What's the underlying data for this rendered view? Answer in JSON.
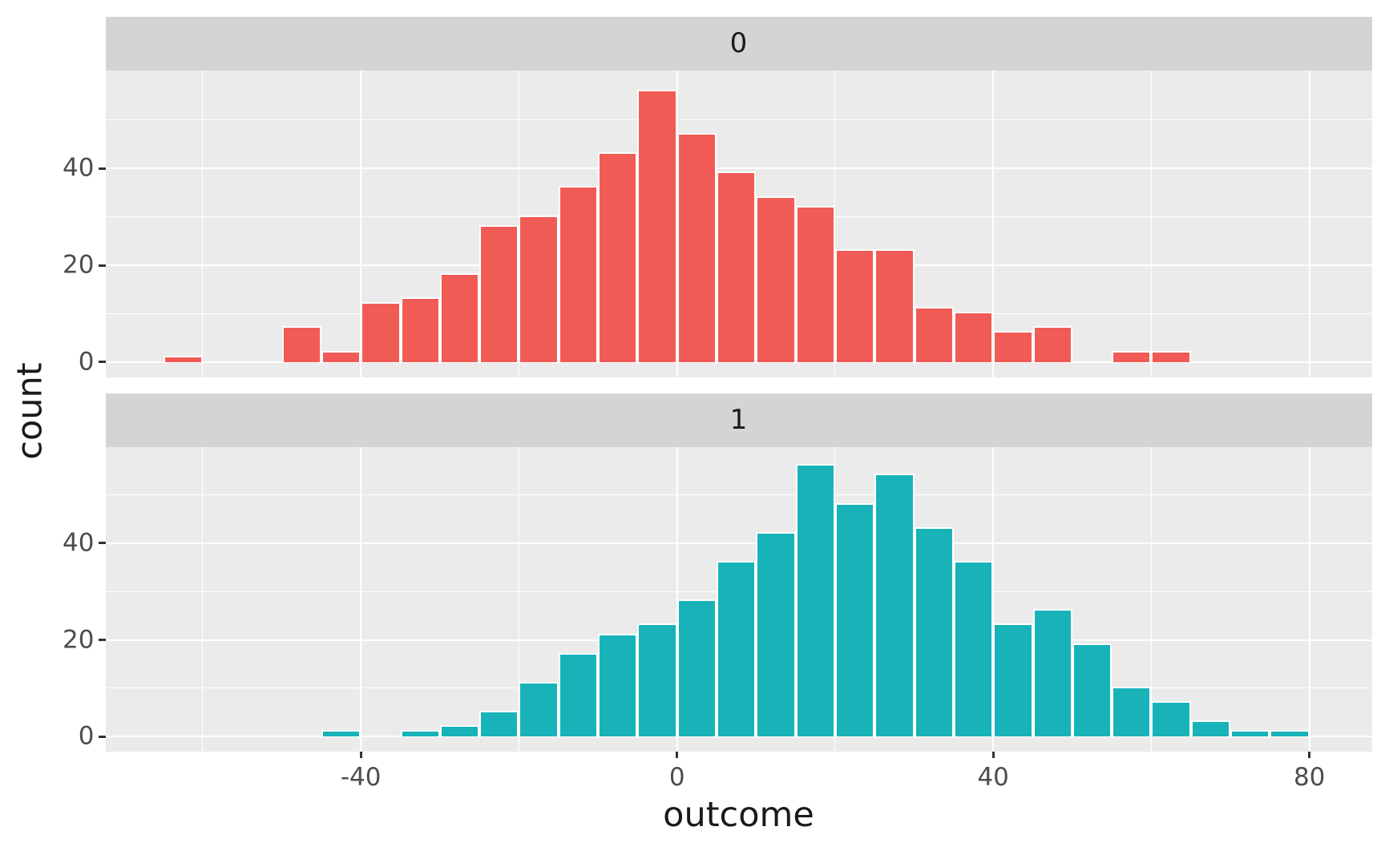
{
  "chart_data": {
    "type": "histogram",
    "xlabel": "outcome",
    "ylabel": "count",
    "binwidth": 5,
    "legend": "none",
    "grid": "on",
    "x_ticks": [
      {
        "value": -40,
        "label": "-40"
      },
      {
        "value": 0,
        "label": "0"
      },
      {
        "value": 40,
        "label": "40"
      },
      {
        "value": 80,
        "label": "80"
      }
    ],
    "x_minor_gridlines": [
      -60,
      -20,
      20,
      60
    ],
    "y_ticks": [
      {
        "value": 0,
        "label": "0"
      },
      {
        "value": 20,
        "label": "20"
      },
      {
        "value": 40,
        "label": "40"
      }
    ],
    "y_minor_gridlines": [
      10,
      30,
      50
    ],
    "x_range": [
      -72,
      88
    ],
    "y_range": [
      -3,
      60
    ],
    "facets": [
      {
        "label": "0",
        "fill_color": "#F15B55",
        "bins": [
          {
            "start": -65,
            "count": 1
          },
          {
            "start": -50,
            "count": 7
          },
          {
            "start": -45,
            "count": 2
          },
          {
            "start": -40,
            "count": 12
          },
          {
            "start": -35,
            "count": 13
          },
          {
            "start": -30,
            "count": 18
          },
          {
            "start": -25,
            "count": 28
          },
          {
            "start": -20,
            "count": 30
          },
          {
            "start": -15,
            "count": 36
          },
          {
            "start": -10,
            "count": 43
          },
          {
            "start": -5,
            "count": 56
          },
          {
            "start": 0,
            "count": 47
          },
          {
            "start": 5,
            "count": 39
          },
          {
            "start": 10,
            "count": 34
          },
          {
            "start": 15,
            "count": 32
          },
          {
            "start": 20,
            "count": 23
          },
          {
            "start": 25,
            "count": 23
          },
          {
            "start": 30,
            "count": 11
          },
          {
            "start": 35,
            "count": 10
          },
          {
            "start": 40,
            "count": 6
          },
          {
            "start": 45,
            "count": 7
          },
          {
            "start": 55,
            "count": 2
          },
          {
            "start": 60,
            "count": 2
          }
        ]
      },
      {
        "label": "1",
        "fill_color": "#17B3B9",
        "bins": [
          {
            "start": -45,
            "count": 1
          },
          {
            "start": -35,
            "count": 1
          },
          {
            "start": -30,
            "count": 2
          },
          {
            "start": -25,
            "count": 5
          },
          {
            "start": -20,
            "count": 11
          },
          {
            "start": -15,
            "count": 17
          },
          {
            "start": -10,
            "count": 21
          },
          {
            "start": -5,
            "count": 23
          },
          {
            "start": 0,
            "count": 28
          },
          {
            "start": 5,
            "count": 36
          },
          {
            "start": 10,
            "count": 42
          },
          {
            "start": 15,
            "count": 56
          },
          {
            "start": 20,
            "count": 48
          },
          {
            "start": 25,
            "count": 54
          },
          {
            "start": 30,
            "count": 43
          },
          {
            "start": 35,
            "count": 36
          },
          {
            "start": 40,
            "count": 23
          },
          {
            "start": 45,
            "count": 26
          },
          {
            "start": 50,
            "count": 19
          },
          {
            "start": 55,
            "count": 10
          },
          {
            "start": 60,
            "count": 7
          },
          {
            "start": 65,
            "count": 3
          },
          {
            "start": 70,
            "count": 1
          },
          {
            "start": 75,
            "count": 1
          }
        ]
      }
    ],
    "colors": {
      "panel_bg": "#EBEBEB",
      "strip_bg": "#D4D4D4",
      "gridline": "#FFFFFF",
      "bar_outline": "#FFFFFF",
      "tick_text": "#4D4D4D",
      "title_text": "#1A1A1A",
      "strip_text": "#1A1A1A",
      "tick_mark": "#333333"
    }
  }
}
